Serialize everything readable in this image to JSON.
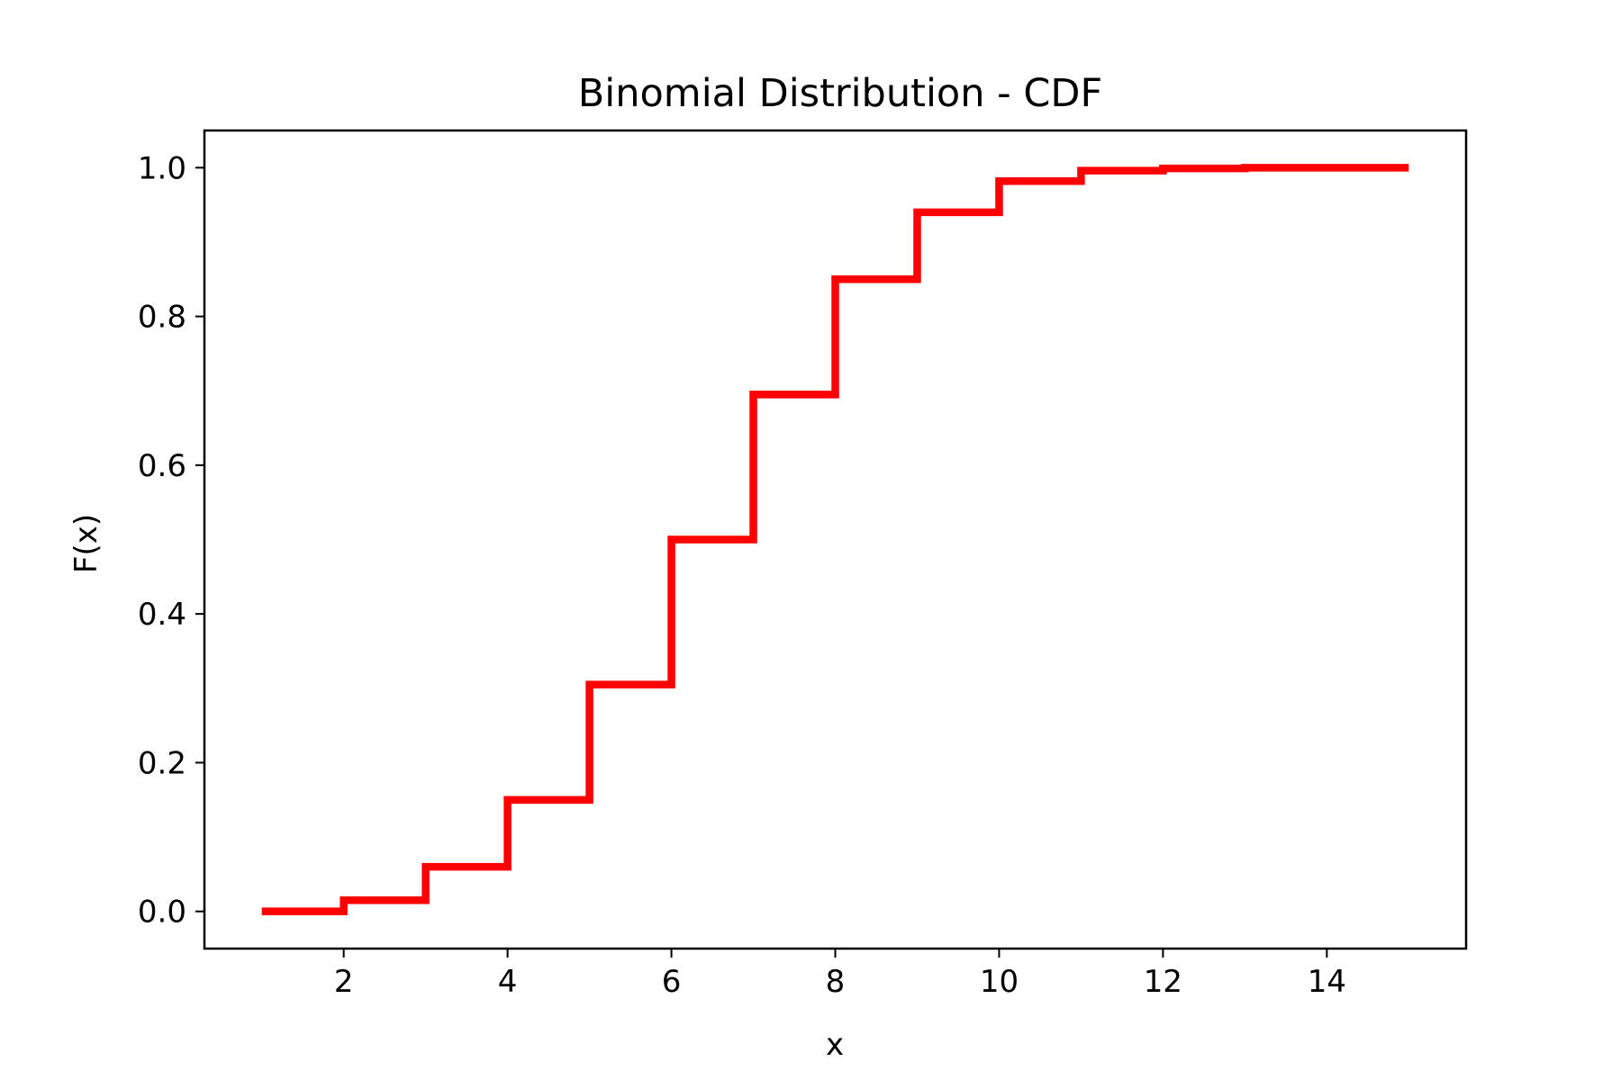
{
  "chart_data": {
    "type": "line",
    "step": "post",
    "title": "Binomial Distribution - CDF",
    "xlabel": "x",
    "ylabel": "F(x)",
    "xlim": [
      0.3,
      15.7
    ],
    "ylim": [
      -0.05,
      1.05
    ],
    "xticks": [
      2,
      4,
      6,
      8,
      10,
      12,
      14
    ],
    "xtick_labels": [
      "2",
      "4",
      "6",
      "8",
      "10",
      "12",
      "14"
    ],
    "yticks": [
      0.0,
      0.2,
      0.4,
      0.6,
      0.8,
      1.0
    ],
    "ytick_labels": [
      "0.0",
      "0.2",
      "0.4",
      "0.6",
      "0.8",
      "1.0"
    ],
    "grid": false,
    "series": [
      {
        "color": "#ff0000",
        "x": [
          1,
          2,
          3,
          4,
          5,
          6,
          7,
          8,
          9,
          10,
          11,
          12,
          13,
          14,
          15
        ],
        "y": [
          0.0,
          0.015,
          0.06,
          0.15,
          0.305,
          0.5,
          0.695,
          0.85,
          0.94,
          0.982,
          0.996,
          0.999,
          1.0,
          1.0,
          1.0
        ]
      }
    ]
  }
}
